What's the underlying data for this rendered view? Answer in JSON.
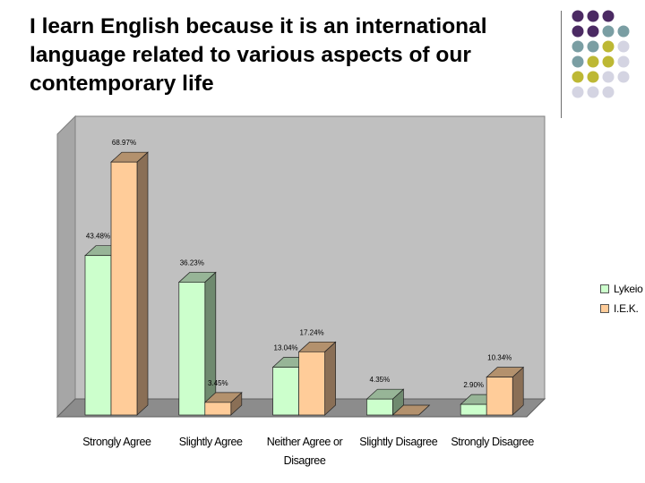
{
  "slide": {
    "title": "I learn English because it is an international language related to various aspects of our contemporary life"
  },
  "decoration": {
    "dot_colors": [
      "#4b2a63",
      "#7a9ea3",
      "#bdb834",
      "#d4d4e2"
    ]
  },
  "chart_data": {
    "type": "bar",
    "view": "3d",
    "title": "",
    "xlabel": "",
    "ylabel": "",
    "ylim": [
      0,
      70
    ],
    "grid": false,
    "legend_position": "right",
    "categories": [
      "Strongly Agree",
      "Slightly Agree",
      "Neither Agree or Disagree",
      "Slightly Disagree",
      "Strongly Disagree"
    ],
    "category_lines": [
      [
        "Strongly Agree"
      ],
      [
        "Slightly Agree"
      ],
      [
        "Neither Agree or",
        "Disagree"
      ],
      [
        "Slightly Disagree"
      ],
      [
        "Strongly Disagree"
      ]
    ],
    "series": [
      {
        "name": "Lykeio",
        "values": [
          43.48,
          36.23,
          13.04,
          4.35,
          2.9
        ],
        "labels": [
          "43.48%",
          "36.23%",
          "13.04%",
          "4.35%",
          "2.90%"
        ],
        "color": "#ccffcc",
        "side_color": "#6f8a6f",
        "top_color": "#97b597"
      },
      {
        "name": "I.E.K.",
        "values": [
          68.97,
          3.45,
          17.24,
          0,
          10.34
        ],
        "labels": [
          "68.97%",
          "3.45%",
          "17.24%",
          "",
          "10.34%"
        ],
        "color": "#ffcc99",
        "side_color": "#8a6f56",
        "top_color": "#b3916d"
      }
    ]
  }
}
